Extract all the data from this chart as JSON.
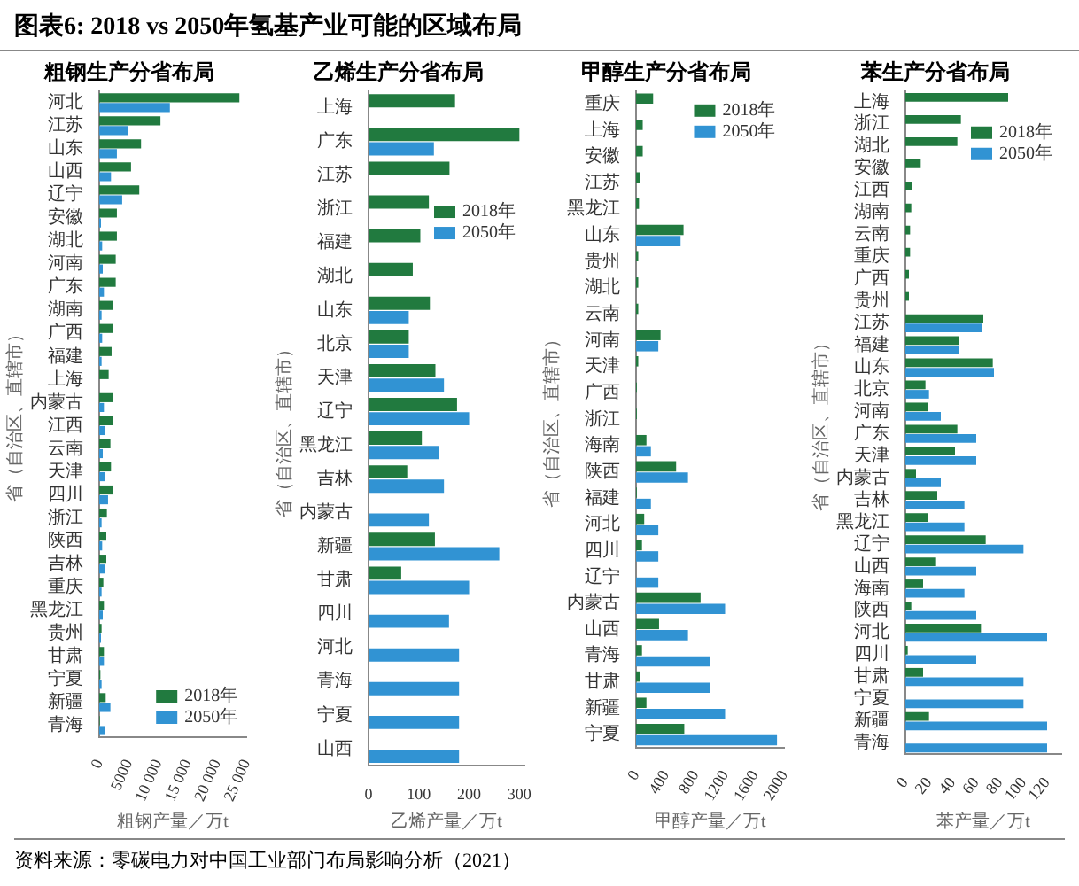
{
  "chart_data": [
    {
      "type": "bar",
      "orientation": "horizontal",
      "title": "粗钢生产分省布局",
      "xlabel": "粗钢产量／万t",
      "ylabel": "省（自治区、直辖市）",
      "annotations": [
        "图表6: 2018 vs 2050年氢基产业可能的区域布局"
      ],
      "categories": [
        "河北",
        "江苏",
        "山东",
        "山西",
        "辽宁",
        "安徽",
        "湖北",
        "河南",
        "广东",
        "湖南",
        "广西",
        "福建",
        "上海",
        "内蒙古",
        "江西",
        "云南",
        "天津",
        "四川",
        "浙江",
        "陕西",
        "吉林",
        "重庆",
        "黑龙江",
        "贵州",
        "甘肃",
        "宁夏",
        "新疆",
        "青海"
      ],
      "series": [
        {
          "name": "2018年",
          "color": "#217a3f",
          "values": [
            23800,
            10400,
            7100,
            5400,
            6800,
            3000,
            3000,
            2800,
            2800,
            2300,
            2300,
            2100,
            1600,
            2300,
            2400,
            1900,
            2000,
            2300,
            1300,
            1200,
            1200,
            700,
            800,
            400,
            800,
            200,
            1100,
            100
          ]
        },
        {
          "name": "2050年",
          "color": "#3193d3",
          "values": [
            12000,
            4900,
            3000,
            2000,
            3900,
            300,
            500,
            600,
            800,
            400,
            500,
            400,
            null,
            800,
            1000,
            600,
            900,
            1500,
            400,
            500,
            900,
            400,
            600,
            300,
            800,
            400,
            1900,
            900
          ]
        }
      ],
      "xlim": [
        0,
        25000
      ],
      "xticks": [
        0,
        5000,
        {
          "value": 10000,
          "label": "10 000"
        },
        {
          "value": 15000,
          "label": "15 000"
        },
        {
          "value": 20000,
          "label": "20 000"
        },
        {
          "value": 25000,
          "label": "25 000"
        }
      ],
      "legend": "bottom right"
    },
    {
      "type": "bar",
      "orientation": "horizontal",
      "title": "乙烯生产分省布局",
      "xlabel": "乙烯产量／万t",
      "ylabel": "省（自治区、直辖市）",
      "categories": [
        "上海",
        "广东",
        "江苏",
        "浙江",
        "福建",
        "湖北",
        "山东",
        "北京",
        "天津",
        "辽宁",
        "黑龙江",
        "吉林",
        "内蒙古",
        "新疆",
        "甘肃",
        "四川",
        "河北",
        "青海",
        "宁夏",
        "山西"
      ],
      "series": [
        {
          "name": "2018年",
          "color": "#217a3f",
          "values": [
            172,
            300,
            161,
            120,
            103,
            88,
            122,
            80,
            133,
            176,
            106,
            77,
            null,
            132,
            65,
            null,
            null,
            null,
            null,
            null
          ]
        },
        {
          "name": "2050年",
          "color": "#3193d3",
          "values": [
            null,
            130,
            null,
            null,
            null,
            null,
            80,
            80,
            150,
            200,
            140,
            150,
            120,
            260,
            200,
            160,
            180,
            180,
            180,
            180
          ]
        }
      ],
      "xlim": [
        0,
        310
      ],
      "xticks": [
        0,
        100,
        200,
        300
      ],
      "legend": "top right"
    },
    {
      "type": "bar",
      "orientation": "horizontal",
      "title": "甲醇生产分省布局",
      "xlabel": "甲醇产量／万t",
      "ylabel": "省（自治区、直辖市）",
      "categories": [
        "重庆",
        "上海",
        "安徽",
        "江苏",
        "黑龙江",
        "山东",
        "贵州",
        "湖北",
        "云南",
        "河南",
        "天津",
        "广西",
        "浙江",
        "海南",
        "陕西",
        "福建",
        "河北",
        "四川",
        "辽宁",
        "内蒙古",
        "山西",
        "青海",
        "甘肃",
        "新疆",
        "宁夏"
      ],
      "series": [
        {
          "name": "2018年",
          "color": "#217a3f",
          "values": [
            230,
            90,
            90,
            50,
            40,
            640,
            30,
            30,
            30,
            330,
            30,
            10,
            10,
            140,
            540,
            10,
            110,
            80,
            null,
            870,
            310,
            80,
            60,
            140,
            650
          ]
        },
        {
          "name": "2050年",
          "color": "#3193d3",
          "values": [
            null,
            null,
            null,
            null,
            null,
            600,
            null,
            null,
            null,
            300,
            null,
            null,
            null,
            200,
            700,
            200,
            300,
            300,
            300,
            1200,
            700,
            1000,
            1000,
            1200,
            1900
          ]
        }
      ],
      "xlim": [
        0,
        2000
      ],
      "xticks": [
        0,
        400,
        800,
        1200,
        1600,
        2000
      ],
      "legend": "top right"
    },
    {
      "type": "bar",
      "orientation": "horizontal",
      "title": "苯生产分省布局",
      "xlabel": "苯产量／万t",
      "ylabel": "省（自治区、直辖市）",
      "annotations": [
        "资料来源：零碳电力对中国工业部门布局影响分析（2021）"
      ],
      "categories": [
        "上海",
        "浙江",
        "湖北",
        "安徽",
        "江西",
        "湖南",
        "云南",
        "重庆",
        "广西",
        "贵州",
        "江苏",
        "福建",
        "山东",
        "北京",
        "河南",
        "广东",
        "天津",
        "内蒙古",
        "吉林",
        "黑龙江",
        "辽宁",
        "山西",
        "海南",
        "陕西",
        "河北",
        "四川",
        "甘肃",
        "宁夏",
        "新疆",
        "青海"
      ],
      "series": [
        {
          "name": "2018年",
          "color": "#217a3f",
          "values": [
            87,
            47,
            44,
            13,
            6,
            5,
            4,
            4,
            3,
            3,
            66,
            45,
            74,
            17,
            19,
            44,
            42,
            9,
            27,
            19,
            68,
            26,
            15,
            5,
            64,
            2,
            15,
            null,
            20,
            null
          ]
        },
        {
          "name": "2050年",
          "color": "#3193d3",
          "values": [
            null,
            null,
            null,
            null,
            null,
            null,
            null,
            null,
            null,
            null,
            65,
            45,
            75,
            20,
            30,
            60,
            60,
            30,
            50,
            50,
            100,
            60,
            50,
            60,
            120,
            60,
            100,
            100,
            120,
            120
          ]
        }
      ],
      "xlim": [
        0,
        132
      ],
      "xticks": [
        0,
        20,
        40,
        60,
        80,
        100,
        120
      ],
      "legend": "top right"
    }
  ]
}
